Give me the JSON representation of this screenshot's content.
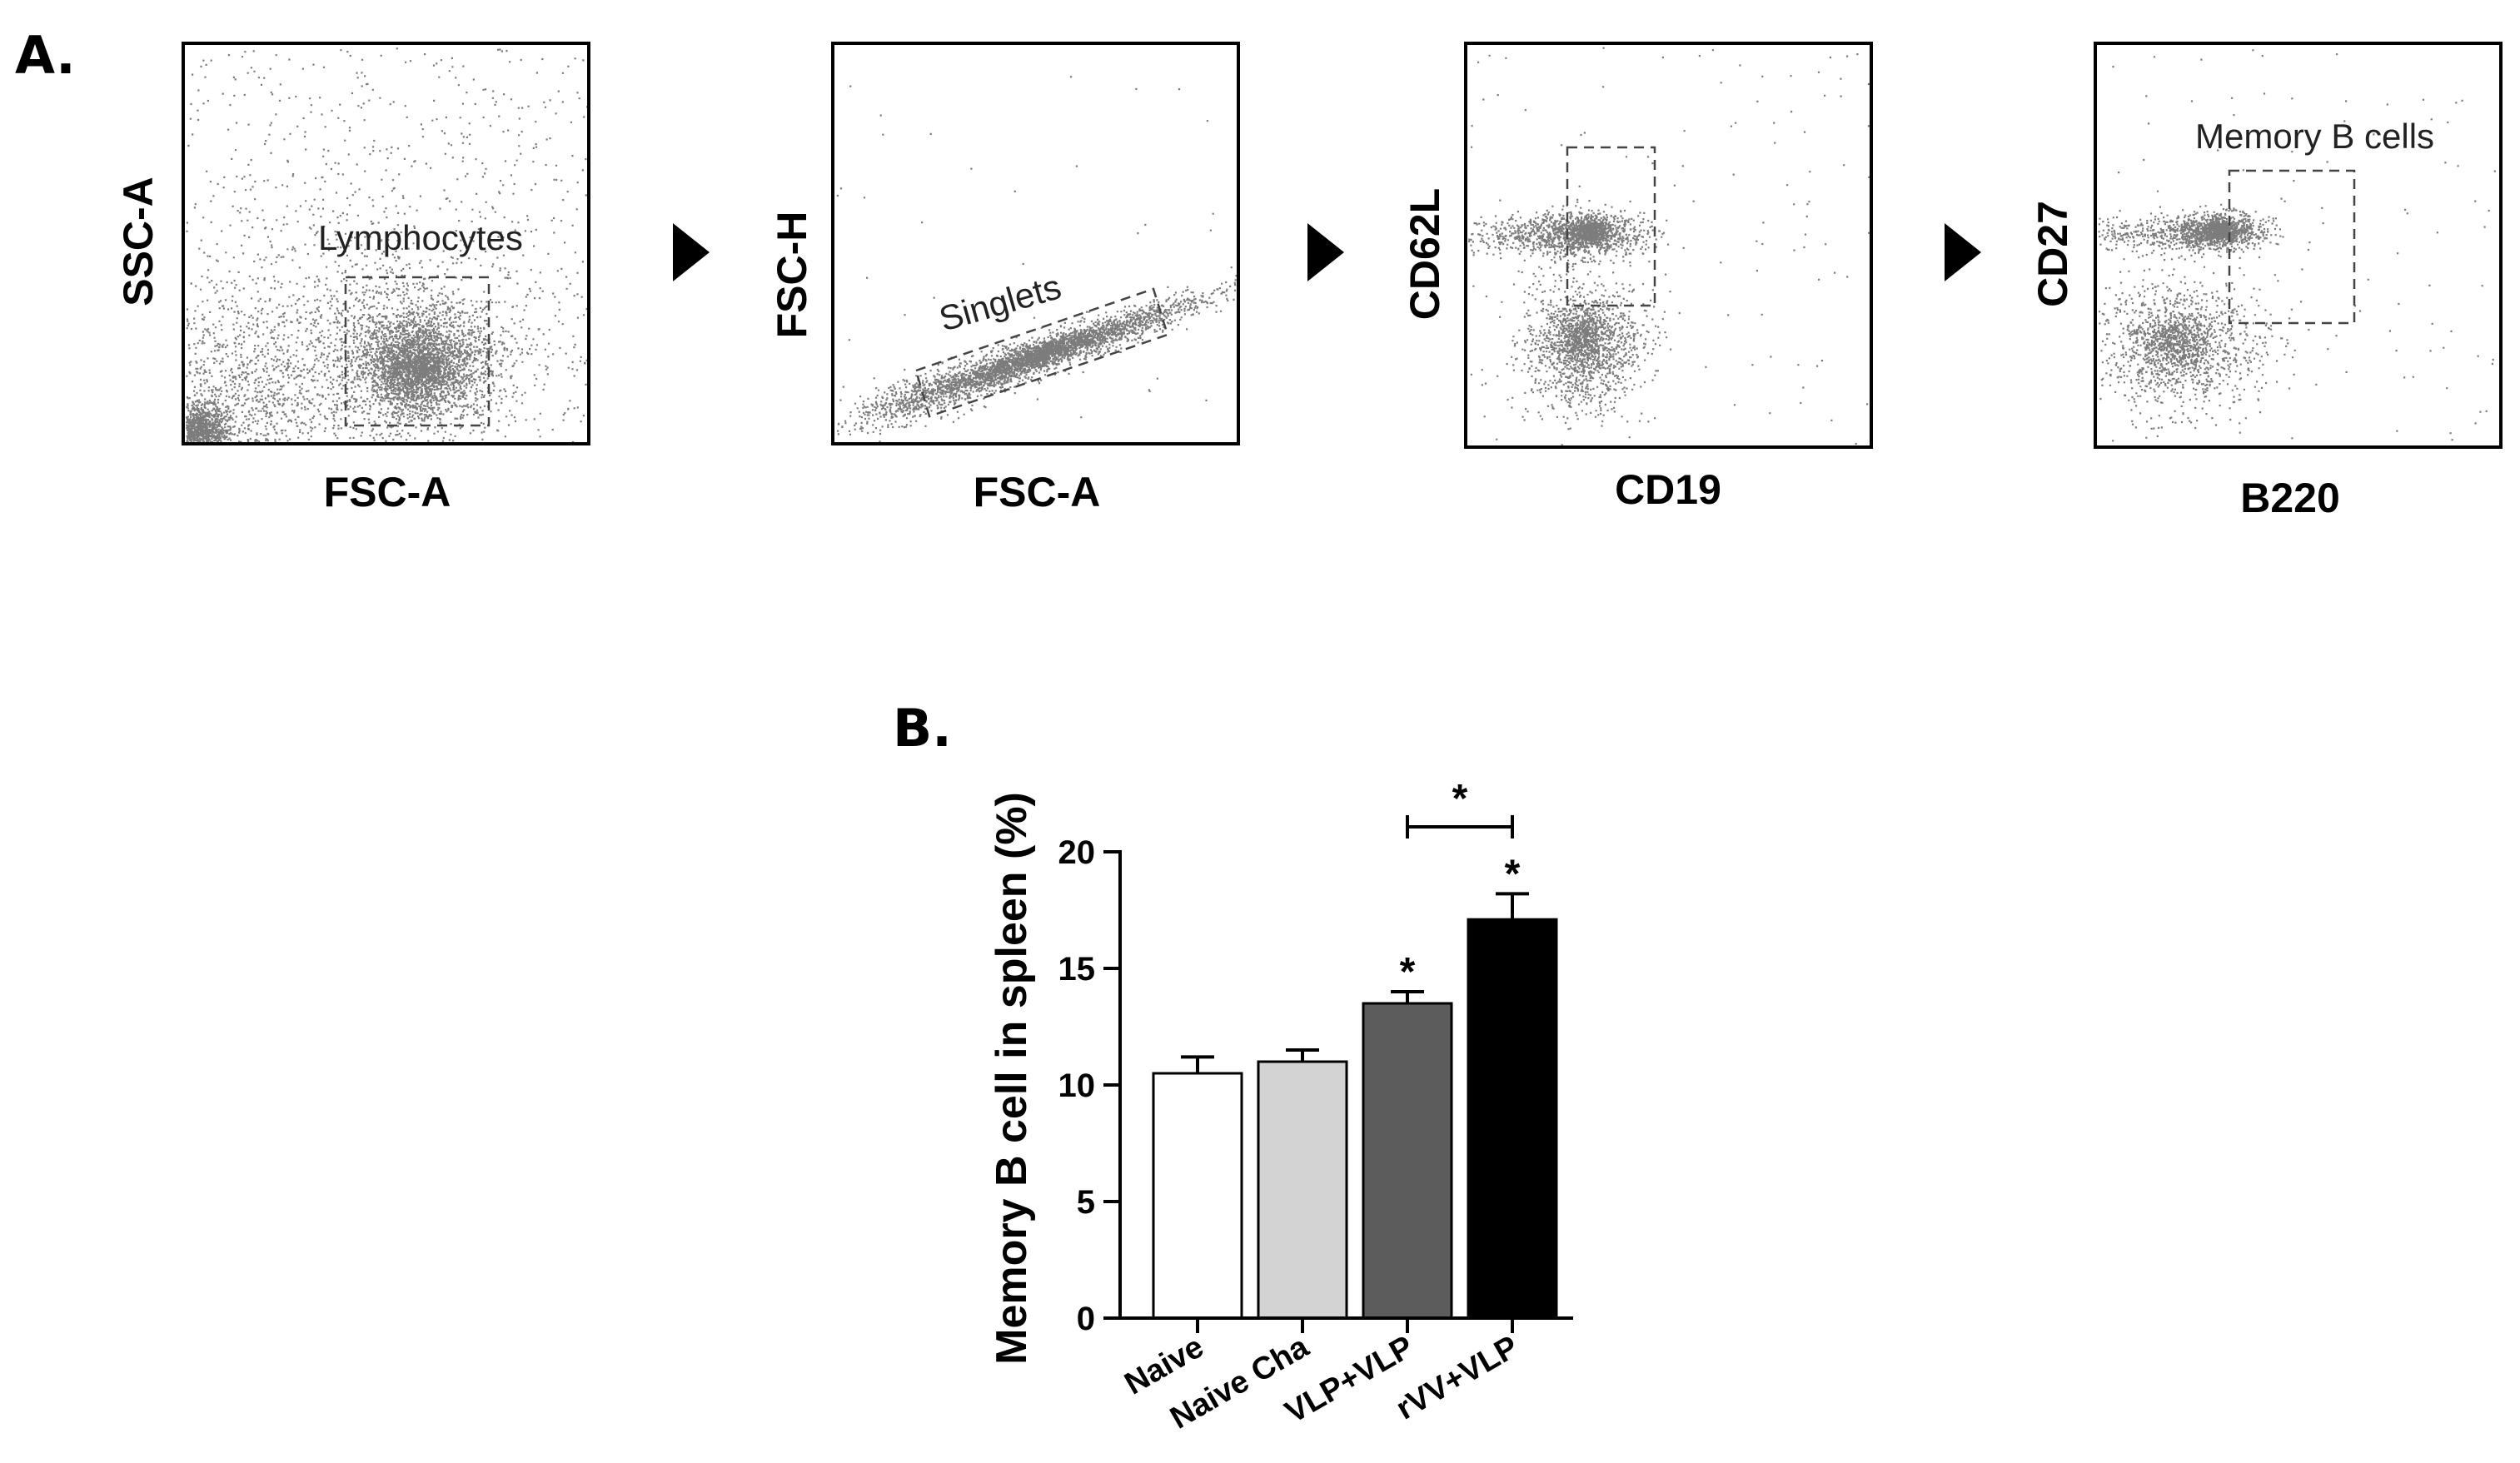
{
  "panel_a": {
    "label": "A.",
    "plots": [
      {
        "xlabel": "FSC-A",
        "ylabel": "SSC-A",
        "gate": "Lymphocytes"
      },
      {
        "xlabel": "FSC-A",
        "ylabel": "FSC-H",
        "gate": "Singlets"
      },
      {
        "xlabel": "CD19",
        "ylabel": "CD62L",
        "gate": ""
      },
      {
        "xlabel": "B220",
        "ylabel": "CD27",
        "gate": "Memory B cells"
      }
    ]
  },
  "panel_b": {
    "label": "B."
  },
  "chart_data": {
    "type": "bar",
    "title": "",
    "categories": [
      "Naive",
      "Naive Cha",
      "VLP+VLP",
      "rVV+VLP"
    ],
    "values": [
      10.5,
      11.0,
      13.5,
      17.1
    ],
    "errors": [
      0.7,
      0.5,
      0.5,
      1.1
    ],
    "bar_colors": [
      "#ffffff",
      "#d3d3d3",
      "#5c5c5c",
      "#000000"
    ],
    "significance": [
      "",
      "",
      "*",
      "*"
    ],
    "comparison": {
      "from": "VLP+VLP",
      "to": "rVV+VLP",
      "label": "*"
    },
    "xlabel": "",
    "ylabel": "Memory B cell in spleen (%)",
    "ylim": [
      0,
      20
    ],
    "yticks": [
      "0",
      "5",
      "10",
      "15",
      "20"
    ]
  }
}
